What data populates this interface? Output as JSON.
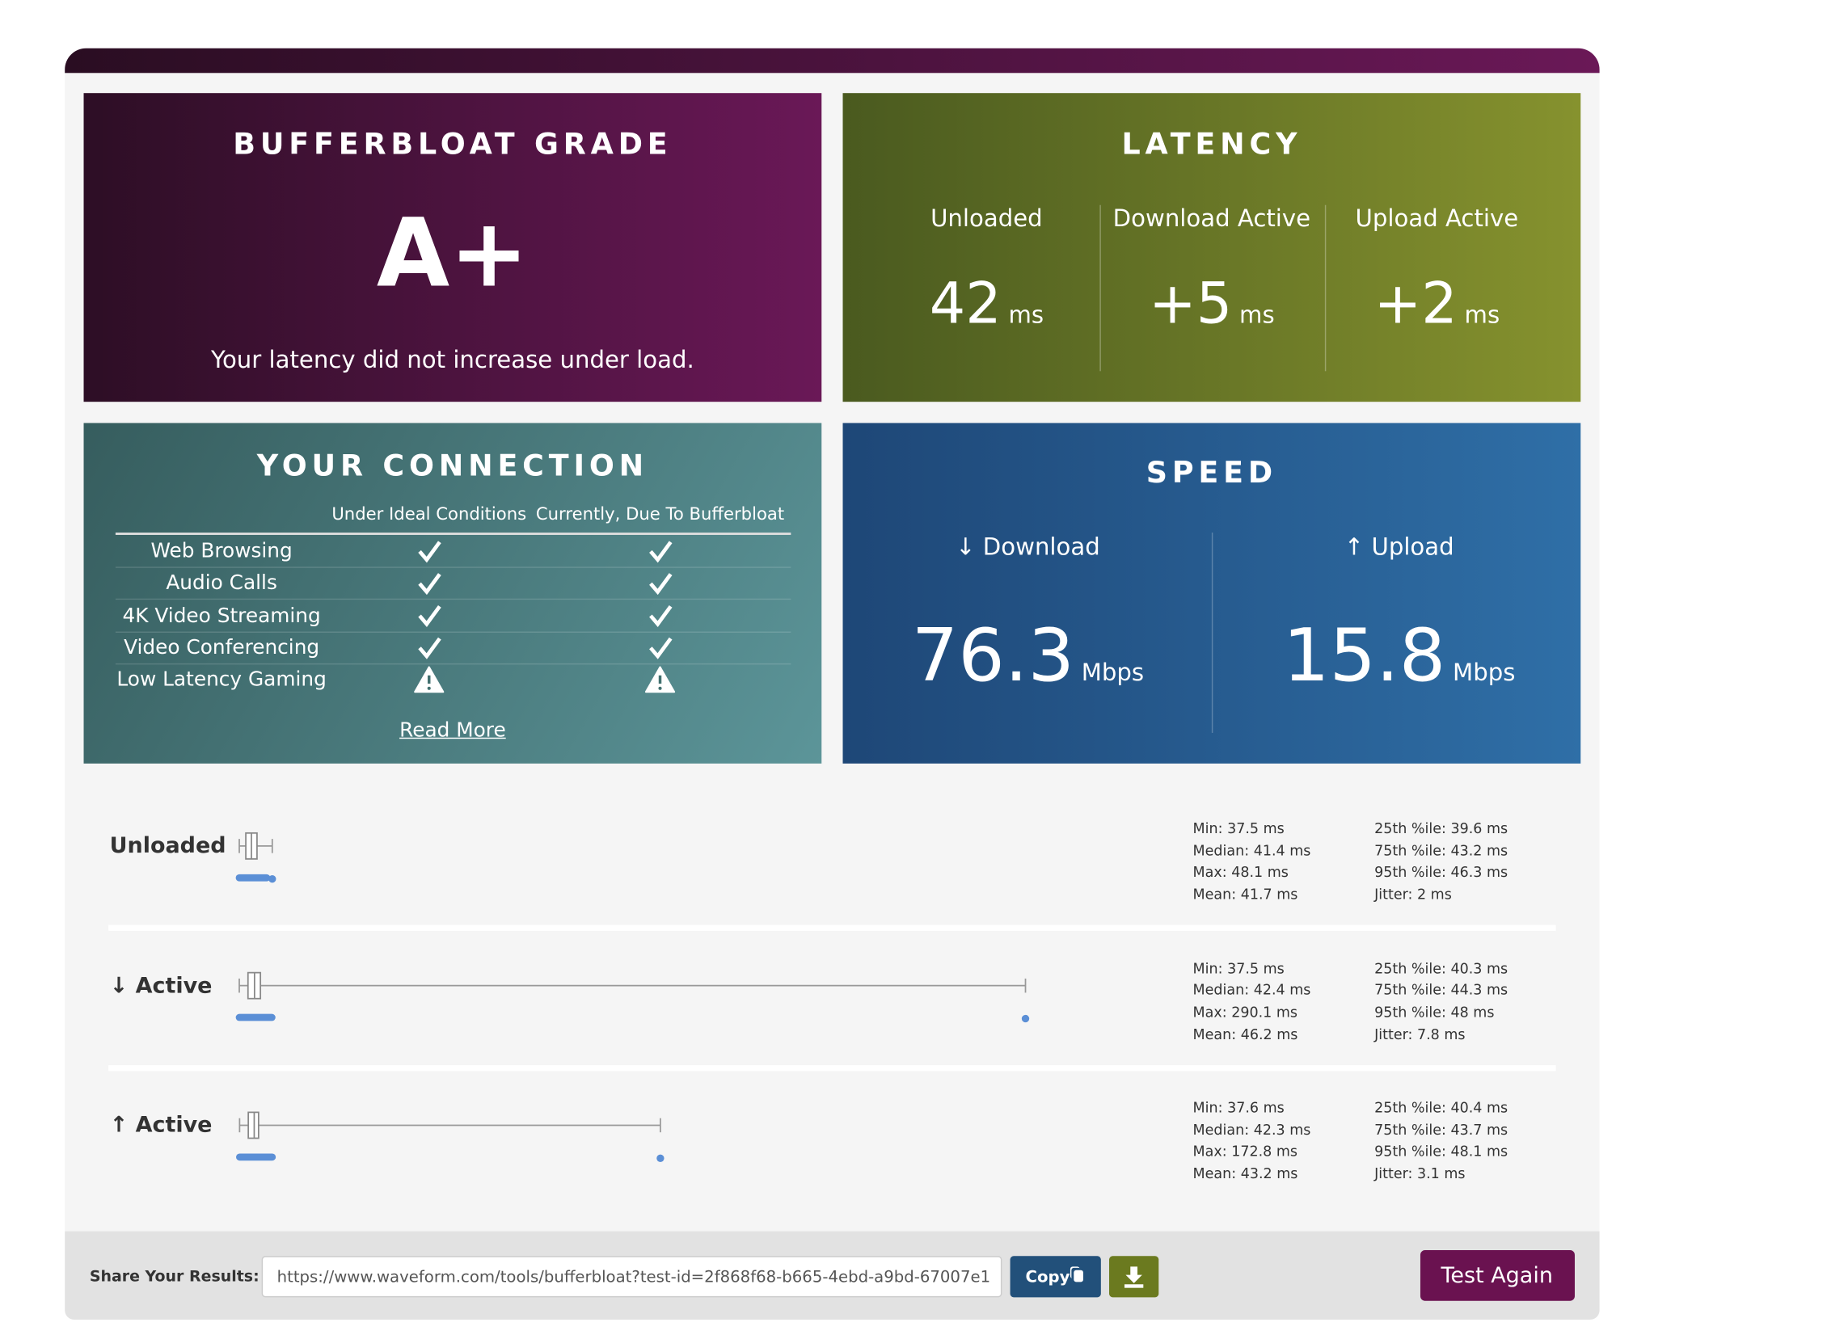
{
  "header": {
    "title": "BUFFERBLOAT GRADE",
    "grade": "A+",
    "note": "Your latency did not increase under load."
  },
  "latency": {
    "title": "LATENCY",
    "columns": [
      {
        "label": "Unloaded",
        "value": "42",
        "unit": "ms"
      },
      {
        "label": "Download Active",
        "value": "+5",
        "unit": "ms"
      },
      {
        "label": "Upload Active",
        "value": "+2",
        "unit": "ms"
      }
    ]
  },
  "connection": {
    "title": "YOUR CONNECTION",
    "headers": [
      "Under Ideal Conditions",
      "Currently, Due To Bufferbloat"
    ],
    "rows": [
      "Web Browsing",
      "Audio Calls",
      "4K Video Streaming",
      "Video Conferencing",
      "Low Latency Gaming"
    ],
    "link": "Read More"
  },
  "speed": {
    "title": "SPEED",
    "columns": [
      {
        "label": "↓ Download",
        "value": "76.3",
        "unit": "Mbps"
      },
      {
        "label": "↑ Upload",
        "value": "15.8",
        "unit": "Mbps"
      }
    ]
  },
  "stats": [
    {
      "label": "Unloaded",
      "items": [
        {
          "name": "Min:",
          "value": 37.5,
          "label": "37.5 ms"
        },
        {
          "name": "Median:",
          "value": 41.4,
          "label": "41.4 ms"
        },
        {
          "name": "Max:",
          "value": 48.1,
          "label": "48.1 ms"
        },
        {
          "name": "Mean:",
          "value": 41.7,
          "label": "41.7 ms"
        },
        {
          "name": "25th %ile:",
          "value": 39.6,
          "label": "39.6 ms"
        },
        {
          "name": "75th %ile:",
          "value": 43.2,
          "label": "43.2 ms"
        },
        {
          "name": "95th %ile:",
          "value": 46.3,
          "label": "46.3 ms"
        },
        {
          "name": "Jitter:",
          "value": 2,
          "label": "2 ms"
        }
      ]
    },
    {
      "label": "↓ Active",
      "items": [
        {
          "name": "Min:",
          "value": 37.5,
          "label": "37.5 ms"
        },
        {
          "name": "Median:",
          "value": 42.4,
          "label": "42.4 ms"
        },
        {
          "name": "Max:",
          "value": 290.1,
          "label": "290.1 ms"
        },
        {
          "name": "Mean:",
          "value": 46.2,
          "label": "46.2 ms"
        },
        {
          "name": "25th %ile:",
          "value": 40.3,
          "label": "40.3 ms"
        },
        {
          "name": "75th %ile:",
          "value": 44.3,
          "label": "44.3 ms"
        },
        {
          "name": "95th %ile:",
          "value": 48,
          "label": "48 ms"
        },
        {
          "name": "Jitter:",
          "value": 7.8,
          "label": "7.8 ms"
        }
      ]
    },
    {
      "label": "↑ Active",
      "items": [
        {
          "name": "Min:",
          "value": 37.6,
          "label": "37.6 ms"
        },
        {
          "name": "Median:",
          "value": 42.3,
          "label": "42.3 ms"
        },
        {
          "name": "Max:",
          "value": 172.8,
          "label": "172.8 ms"
        },
        {
          "name": "Mean:",
          "value": 43.2,
          "label": "43.2 ms"
        },
        {
          "name": "25th %ile:",
          "value": 40.4,
          "label": "40.4 ms"
        },
        {
          "name": "75th %ile:",
          "value": 43.7,
          "label": "43.7 ms"
        },
        {
          "name": "95th %ile:",
          "value": 48.1,
          "label": "48.1 ms"
        },
        {
          "name": "Jitter:",
          "value": 3.1,
          "label": "3.1 ms"
        }
      ]
    }
  ],
  "share": {
    "label": "Share Your Results:",
    "url": "https://www.waveform.com/tools/bufferbloat?test-id=2f868f68-b665-4ebd-a9bd-67007e1",
    "copy": "Copy",
    "again": "Test Again"
  }
}
